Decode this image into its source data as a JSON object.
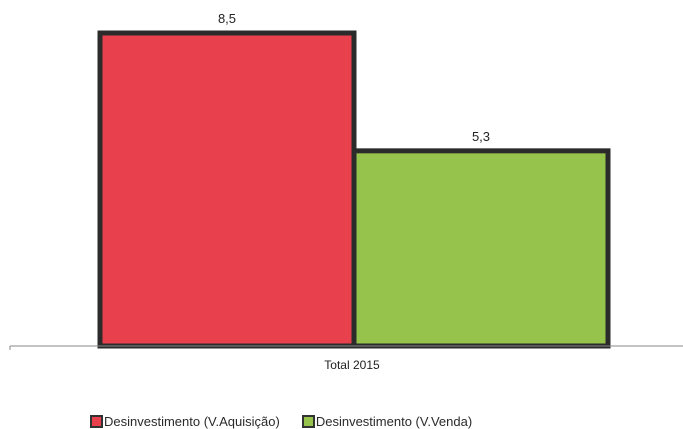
{
  "chart_data": {
    "type": "bar",
    "categories": [
      "Total 2015"
    ],
    "series": [
      {
        "name": "Desinvestimento (V.Aquisição)",
        "values": [
          8.5
        ],
        "label": "8,5",
        "color": "#e8404c"
      },
      {
        "name": "Desinvestimento (V.Venda)",
        "values": [
          5.3
        ],
        "label": "5,3",
        "color": "#96c34c"
      }
    ],
    "ylim": [
      0,
      8.5
    ],
    "grid": false,
    "legend_position": "bottom-left",
    "title": "",
    "xlabel": "",
    "ylabel": ""
  }
}
